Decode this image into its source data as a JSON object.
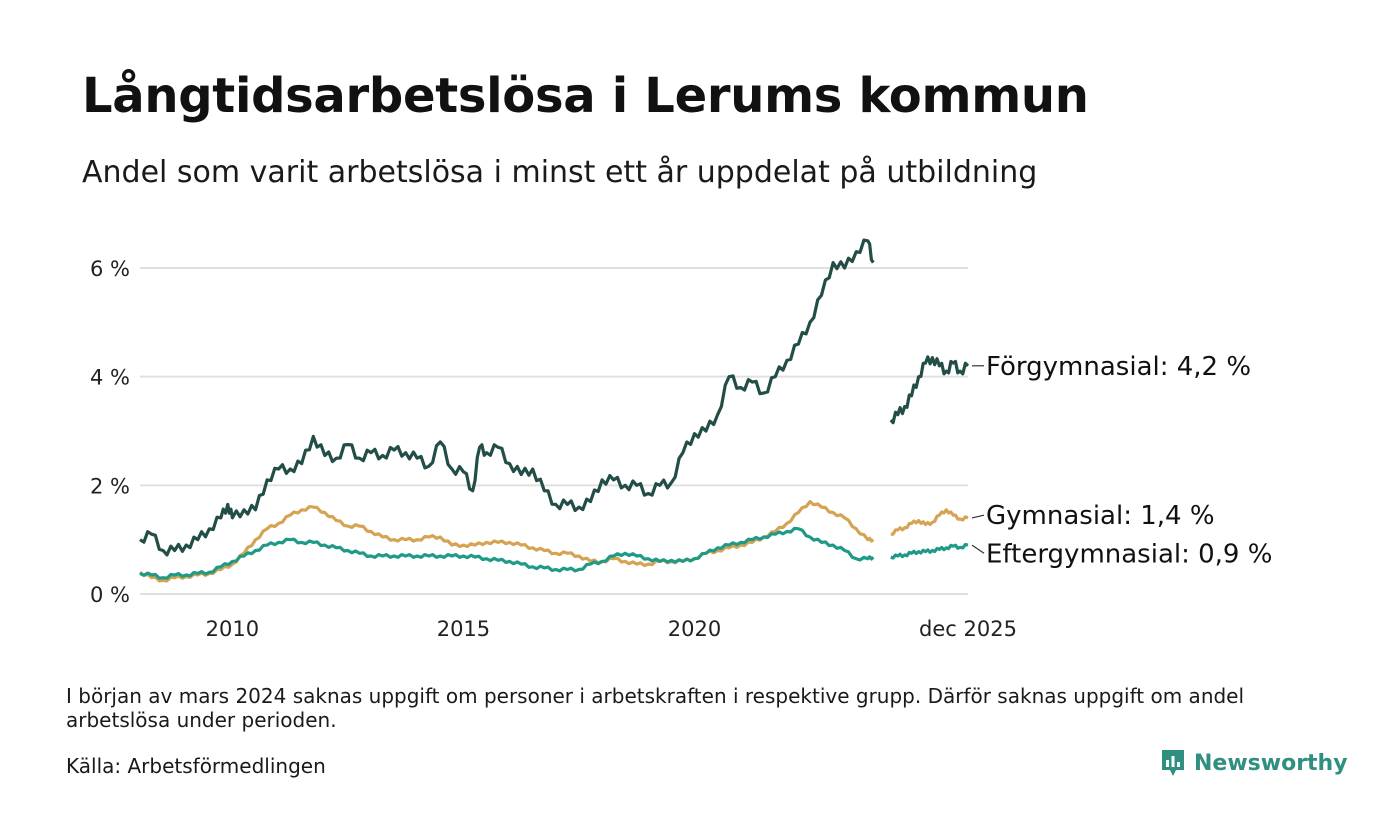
{
  "title": "Långtidsarbetslösa i Lerums kommun",
  "subtitle": "Andel som varit arbetslösa i minst ett år uppdelat på utbildning",
  "footnote": "I början av mars 2024 saknas uppgift om personer i arbetskraften i respektive grupp. Därför saknas uppgift om andel arbetslösa under perioden.",
  "source": "Källa: Arbetsförmedlingen",
  "brand": "Newsworthy",
  "colors": {
    "forgymnasial": "#234d47",
    "gymnasial": "#d4a354",
    "eftergymnasial": "#1f9a86",
    "grid": "#e0e0e0",
    "brand": "#2f8f80"
  },
  "chart_data": {
    "type": "line",
    "title": "Långtidsarbetslösa i Lerums kommun",
    "xlabel": "",
    "ylabel": "",
    "xlim": [
      2008.0,
      2025.92
    ],
    "ylim": [
      0,
      6.8
    ],
    "y_ticks": [
      {
        "value": 0,
        "label": "0 %"
      },
      {
        "value": 2,
        "label": "2 %"
      },
      {
        "value": 4,
        "label": "4 %"
      },
      {
        "value": 6,
        "label": "6 %"
      }
    ],
    "x_ticks": [
      {
        "value": 2010,
        "label": "2010"
      },
      {
        "value": 2015,
        "label": "2015"
      },
      {
        "value": 2020,
        "label": "2020"
      },
      {
        "value": 2025.92,
        "label": "dec 2025"
      }
    ],
    "gap": [
      2023.87,
      2024.25
    ],
    "series": [
      {
        "key": "forgymnasial",
        "name": "Förgymnasial",
        "label": "Förgymnasial: 4,2 %",
        "last_value": 4.2,
        "points": [
          [
            2008.0,
            1.0
          ],
          [
            2008.25,
            1.1
          ],
          [
            2008.5,
            0.8
          ],
          [
            2008.75,
            0.8
          ],
          [
            2009.0,
            0.9
          ],
          [
            2009.25,
            1.0
          ],
          [
            2009.5,
            1.2
          ],
          [
            2009.75,
            1.4
          ],
          [
            2009.9,
            1.65
          ],
          [
            2010.0,
            1.4
          ],
          [
            2010.25,
            1.55
          ],
          [
            2010.5,
            1.55
          ],
          [
            2010.75,
            2.1
          ],
          [
            2011.0,
            2.3
          ],
          [
            2011.25,
            2.3
          ],
          [
            2011.5,
            2.4
          ],
          [
            2011.75,
            2.9
          ],
          [
            2012.0,
            2.55
          ],
          [
            2012.25,
            2.5
          ],
          [
            2012.5,
            2.75
          ],
          [
            2012.75,
            2.5
          ],
          [
            2013.0,
            2.6
          ],
          [
            2013.25,
            2.55
          ],
          [
            2013.5,
            2.65
          ],
          [
            2013.75,
            2.6
          ],
          [
            2014.0,
            2.5
          ],
          [
            2014.25,
            2.35
          ],
          [
            2014.5,
            2.8
          ],
          [
            2014.75,
            2.3
          ],
          [
            2015.0,
            2.25
          ],
          [
            2015.2,
            1.9
          ],
          [
            2015.35,
            2.7
          ],
          [
            2015.5,
            2.6
          ],
          [
            2015.75,
            2.7
          ],
          [
            2016.0,
            2.4
          ],
          [
            2016.25,
            2.2
          ],
          [
            2016.5,
            2.3
          ],
          [
            2016.75,
            1.9
          ],
          [
            2017.0,
            1.65
          ],
          [
            2017.25,
            1.65
          ],
          [
            2017.5,
            1.6
          ],
          [
            2017.75,
            1.7
          ],
          [
            2018.0,
            2.1
          ],
          [
            2018.25,
            2.1
          ],
          [
            2018.5,
            2.0
          ],
          [
            2018.75,
            2.0
          ],
          [
            2019.0,
            1.85
          ],
          [
            2019.25,
            2.0
          ],
          [
            2019.5,
            2.05
          ],
          [
            2019.75,
            2.6
          ],
          [
            2020.0,
            2.95
          ],
          [
            2020.25,
            3.0
          ],
          [
            2020.5,
            3.3
          ],
          [
            2020.75,
            4.0
          ],
          [
            2021.0,
            3.8
          ],
          [
            2021.25,
            3.9
          ],
          [
            2021.5,
            3.7
          ],
          [
            2021.75,
            4.0
          ],
          [
            2022.0,
            4.3
          ],
          [
            2022.25,
            4.6
          ],
          [
            2022.5,
            5.0
          ],
          [
            2022.75,
            5.5
          ],
          [
            2023.0,
            6.1
          ],
          [
            2023.25,
            6.0
          ],
          [
            2023.5,
            6.3
          ],
          [
            2023.75,
            6.5
          ],
          [
            2023.87,
            6.1
          ]
        ]
      },
      {
        "key": "gymnasial",
        "name": "Gymnasial",
        "label": "Gymnasial: 1,4 %",
        "last_value": 1.4,
        "points": [
          [
            2008.0,
            0.4
          ],
          [
            2008.25,
            0.3
          ],
          [
            2008.5,
            0.25
          ],
          [
            2008.75,
            0.3
          ],
          [
            2009.0,
            0.32
          ],
          [
            2009.25,
            0.35
          ],
          [
            2009.5,
            0.38
          ],
          [
            2009.75,
            0.45
          ],
          [
            2010.0,
            0.55
          ],
          [
            2010.25,
            0.75
          ],
          [
            2010.5,
            1.0
          ],
          [
            2010.75,
            1.2
          ],
          [
            2011.0,
            1.3
          ],
          [
            2011.25,
            1.45
          ],
          [
            2011.5,
            1.55
          ],
          [
            2011.75,
            1.6
          ],
          [
            2012.0,
            1.5
          ],
          [
            2012.25,
            1.35
          ],
          [
            2012.5,
            1.25
          ],
          [
            2012.75,
            1.25
          ],
          [
            2013.0,
            1.15
          ],
          [
            2013.25,
            1.05
          ],
          [
            2013.5,
            1.0
          ],
          [
            2013.75,
            1.0
          ],
          [
            2014.0,
            1.0
          ],
          [
            2014.25,
            1.05
          ],
          [
            2014.5,
            1.05
          ],
          [
            2014.75,
            0.9
          ],
          [
            2015.0,
            0.9
          ],
          [
            2015.25,
            0.9
          ],
          [
            2015.5,
            0.95
          ],
          [
            2015.75,
            0.95
          ],
          [
            2016.0,
            0.95
          ],
          [
            2016.25,
            0.9
          ],
          [
            2016.5,
            0.85
          ],
          [
            2016.75,
            0.8
          ],
          [
            2017.0,
            0.75
          ],
          [
            2017.25,
            0.75
          ],
          [
            2017.5,
            0.7
          ],
          [
            2017.75,
            0.6
          ],
          [
            2018.0,
            0.6
          ],
          [
            2018.25,
            0.65
          ],
          [
            2018.5,
            0.6
          ],
          [
            2018.75,
            0.55
          ],
          [
            2019.0,
            0.55
          ],
          [
            2019.25,
            0.6
          ],
          [
            2019.5,
            0.6
          ],
          [
            2019.75,
            0.6
          ],
          [
            2020.0,
            0.65
          ],
          [
            2020.25,
            0.75
          ],
          [
            2020.5,
            0.8
          ],
          [
            2020.75,
            0.85
          ],
          [
            2021.0,
            0.9
          ],
          [
            2021.25,
            0.95
          ],
          [
            2021.5,
            1.05
          ],
          [
            2021.75,
            1.15
          ],
          [
            2022.0,
            1.3
          ],
          [
            2022.25,
            1.5
          ],
          [
            2022.5,
            1.7
          ],
          [
            2022.75,
            1.6
          ],
          [
            2023.0,
            1.5
          ],
          [
            2023.25,
            1.4
          ],
          [
            2023.5,
            1.2
          ],
          [
            2023.75,
            1.0
          ],
          [
            2023.87,
            1.0
          ]
        ]
      },
      {
        "key": "eftergymnasial",
        "name": "Eftergymnasial",
        "label": "Eftergymnasial: 0,9 %",
        "last_value": 0.9,
        "points": [
          [
            2008.0,
            0.38
          ],
          [
            2008.25,
            0.35
          ],
          [
            2008.5,
            0.3
          ],
          [
            2008.75,
            0.35
          ],
          [
            2009.0,
            0.35
          ],
          [
            2009.25,
            0.38
          ],
          [
            2009.5,
            0.4
          ],
          [
            2009.75,
            0.5
          ],
          [
            2010.0,
            0.6
          ],
          [
            2010.25,
            0.7
          ],
          [
            2010.5,
            0.8
          ],
          [
            2010.75,
            0.9
          ],
          [
            2011.0,
            0.95
          ],
          [
            2011.25,
            1.0
          ],
          [
            2011.5,
            0.95
          ],
          [
            2011.75,
            0.95
          ],
          [
            2012.0,
            0.9
          ],
          [
            2012.25,
            0.85
          ],
          [
            2012.5,
            0.8
          ],
          [
            2012.75,
            0.75
          ],
          [
            2013.0,
            0.7
          ],
          [
            2013.25,
            0.7
          ],
          [
            2013.5,
            0.7
          ],
          [
            2013.75,
            0.7
          ],
          [
            2014.0,
            0.7
          ],
          [
            2014.25,
            0.7
          ],
          [
            2014.5,
            0.7
          ],
          [
            2014.75,
            0.7
          ],
          [
            2015.0,
            0.7
          ],
          [
            2015.25,
            0.68
          ],
          [
            2015.5,
            0.65
          ],
          [
            2015.75,
            0.62
          ],
          [
            2016.0,
            0.6
          ],
          [
            2016.25,
            0.55
          ],
          [
            2016.5,
            0.5
          ],
          [
            2016.75,
            0.48
          ],
          [
            2017.0,
            0.45
          ],
          [
            2017.25,
            0.45
          ],
          [
            2017.5,
            0.45
          ],
          [
            2017.75,
            0.55
          ],
          [
            2018.0,
            0.6
          ],
          [
            2018.25,
            0.7
          ],
          [
            2018.5,
            0.75
          ],
          [
            2018.75,
            0.7
          ],
          [
            2019.0,
            0.65
          ],
          [
            2019.25,
            0.6
          ],
          [
            2019.5,
            0.62
          ],
          [
            2019.75,
            0.6
          ],
          [
            2020.0,
            0.65
          ],
          [
            2020.25,
            0.75
          ],
          [
            2020.5,
            0.85
          ],
          [
            2020.75,
            0.9
          ],
          [
            2021.0,
            0.95
          ],
          [
            2021.25,
            1.0
          ],
          [
            2021.5,
            1.05
          ],
          [
            2021.75,
            1.1
          ],
          [
            2022.0,
            1.15
          ],
          [
            2022.25,
            1.2
          ],
          [
            2022.5,
            1.05
          ],
          [
            2022.75,
            0.95
          ],
          [
            2023.0,
            0.9
          ],
          [
            2023.25,
            0.8
          ],
          [
            2023.5,
            0.65
          ],
          [
            2023.75,
            0.65
          ],
          [
            2023.87,
            0.68
          ]
        ]
      }
    ]
  }
}
